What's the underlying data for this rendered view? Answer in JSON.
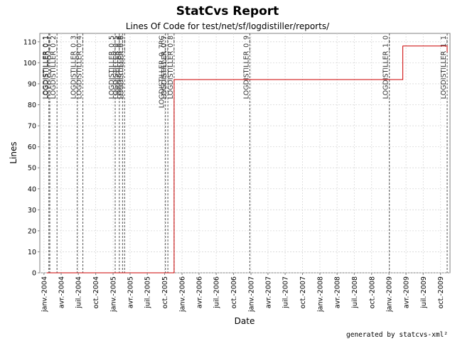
{
  "footer": "generated by statcvs-xml²",
  "chart_data": {
    "type": "line",
    "step": true,
    "title": "StatCvs Report",
    "subtitle": "Lines Of Code for test/net/sf/logdistiller/reports/",
    "xlabel": "Date",
    "ylabel": "Lines",
    "x_range": [
      "2003-12-10",
      "2009-11-20"
    ],
    "ylim": [
      0,
      114
    ],
    "y_ticks": [
      0,
      10,
      20,
      30,
      40,
      50,
      60,
      70,
      80,
      90,
      100,
      110
    ],
    "x_ticks": [
      {
        "date": "2004-01-01",
        "label": "janv.-2004"
      },
      {
        "date": "2004-04-01",
        "label": "avr.-2004"
      },
      {
        "date": "2004-07-01",
        "label": "juil.-2004"
      },
      {
        "date": "2004-10-01",
        "label": "oct.-2004"
      },
      {
        "date": "2005-01-01",
        "label": "janv.-2005"
      },
      {
        "date": "2005-04-01",
        "label": "avr.-2005"
      },
      {
        "date": "2005-07-01",
        "label": "juil.-2005"
      },
      {
        "date": "2005-10-01",
        "label": "oct.-2005"
      },
      {
        "date": "2006-01-01",
        "label": "janv.-2006"
      },
      {
        "date": "2006-04-01",
        "label": "avr.-2006"
      },
      {
        "date": "2006-07-01",
        "label": "juil.-2006"
      },
      {
        "date": "2006-10-01",
        "label": "oct.-2006"
      },
      {
        "date": "2007-01-01",
        "label": "janv.-2007"
      },
      {
        "date": "2007-04-01",
        "label": "avr.-2007"
      },
      {
        "date": "2007-07-01",
        "label": "juil.-2007"
      },
      {
        "date": "2007-10-01",
        "label": "oct.-2007"
      },
      {
        "date": "2008-01-01",
        "label": "janv.-2008"
      },
      {
        "date": "2008-04-01",
        "label": "avr.-2008"
      },
      {
        "date": "2008-07-01",
        "label": "juil.-2008"
      },
      {
        "date": "2008-10-01",
        "label": "oct.-2008"
      },
      {
        "date": "2009-01-01",
        "label": "janv.-2009"
      },
      {
        "date": "2009-04-01",
        "label": "avr.-2009"
      },
      {
        "date": "2009-07-01",
        "label": "juil.-2009"
      },
      {
        "date": "2009-10-01",
        "label": "oct.-2009"
      }
    ],
    "grid": true,
    "series": [
      {
        "color": "#cc0000",
        "points": [
          {
            "x": "2004-01-15",
            "y": 0
          },
          {
            "x": "2005-11-20",
            "y": 0
          },
          {
            "x": "2005-11-20",
            "y": 92
          },
          {
            "x": "2009-03-15",
            "y": 92
          },
          {
            "x": "2009-03-15",
            "y": 108
          },
          {
            "x": "2009-11-05",
            "y": 108
          },
          {
            "x": "2009-11-05",
            "y": 105
          }
        ]
      }
    ],
    "markers": [
      {
        "label": "LOGDISTILLER_0_1",
        "date": "2004-01-27"
      },
      {
        "label": "LOGDISTILLER_0_1",
        "date": "2004-02-01"
      },
      {
        "label": "LOGDISTILLER_0_2",
        "date": "2004-03-10"
      },
      {
        "label": "LOGDISTILLER_0_3",
        "date": "2004-06-25"
      },
      {
        "label": "LOGDISTILLER_0_4",
        "date": "2004-07-25"
      },
      {
        "label": "LOGDISTILLER_0_5",
        "date": "2005-01-12"
      },
      {
        "label": "LOGDISTILLER_0_5",
        "date": "2005-02-03"
      },
      {
        "label": "LOGDISTILLER_0_6",
        "date": "2005-02-20"
      },
      {
        "label": "LOGDISTILLER_0_6",
        "date": "2005-03-03"
      },
      {
        "label": "LOGDISTILLER_0_7RC",
        "date": "2005-10-05"
      },
      {
        "label": "LOGDISTILLER_0_7",
        "date": "2005-10-18"
      },
      {
        "label": "LOGDISTILLER_0_8",
        "date": "2005-11-20"
      },
      {
        "label": "LOGDISTILLER_0_9",
        "date": "2006-12-26"
      },
      {
        "label": "LOGDISTILLER_1_0",
        "date": "2009-01-03"
      },
      {
        "label": "LOGDISTILLER_1_1",
        "date": "2009-11-05"
      }
    ]
  }
}
